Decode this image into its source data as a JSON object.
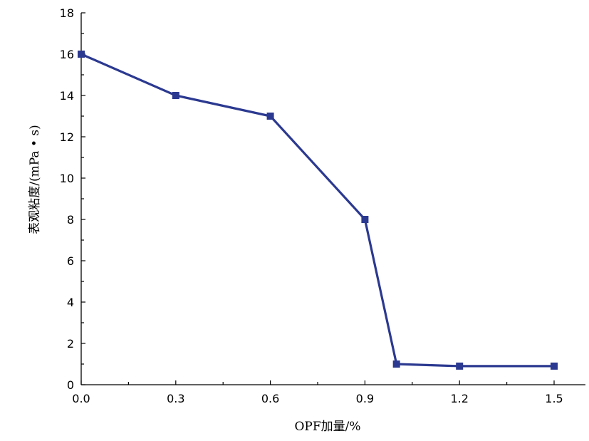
{
  "chart_data": {
    "type": "line",
    "title": "",
    "xlabel": "OPF加量/%",
    "ylabel": "表观粘度/(mPa • s)",
    "xlim": [
      0,
      1.5
    ],
    "ylim": [
      0,
      18
    ],
    "x_ticks": [
      "0.0",
      "0.3",
      "0.6",
      "0.9",
      "1.2",
      "1.5"
    ],
    "y_ticks": [
      "0",
      "2",
      "4",
      "6",
      "8",
      "10",
      "12",
      "14",
      "16",
      "18"
    ],
    "grid": false,
    "legend": "none",
    "series": [
      {
        "color": "#2b3990",
        "marker": "square",
        "x": [
          0.0,
          0.3,
          0.6,
          0.9,
          1.0,
          1.2,
          1.5
        ],
        "y": [
          16,
          14,
          13,
          8,
          1.0,
          0.9,
          0.9
        ]
      }
    ]
  }
}
